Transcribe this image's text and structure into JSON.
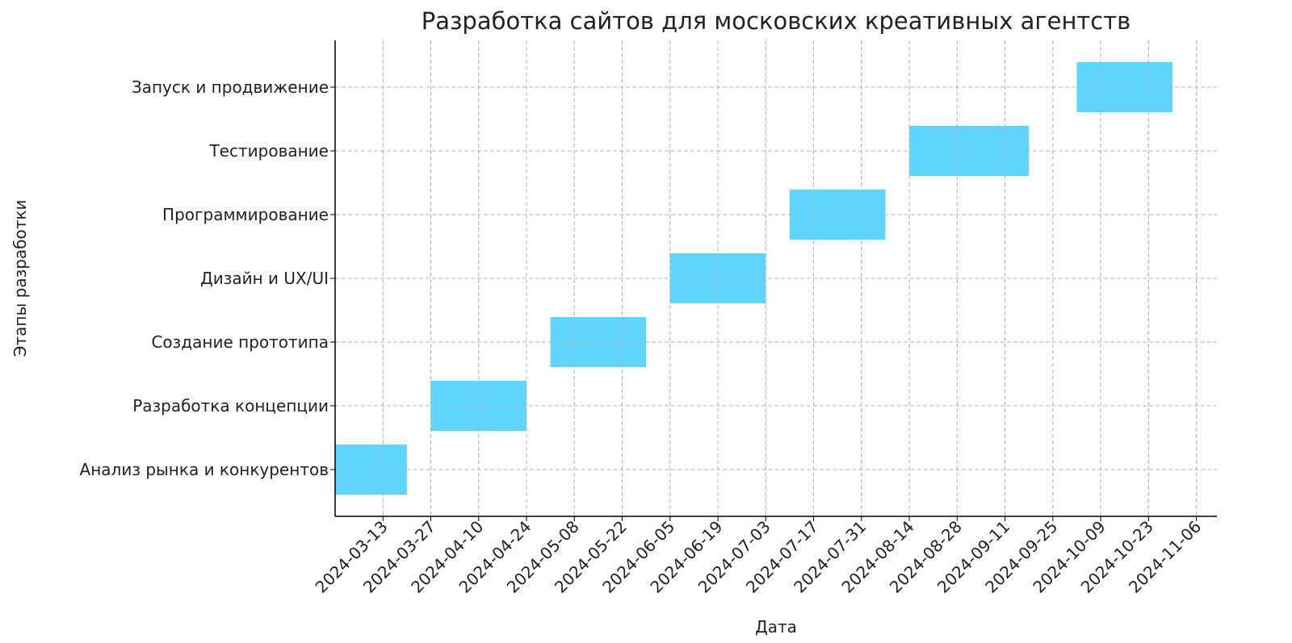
{
  "chart_data": {
    "type": "bar",
    "orientation": "horizontal-gantt",
    "title": "Разработка сайтов для московских креативных агентств",
    "xlabel": "Дата",
    "ylabel": "Этапы разработки",
    "xlim": [
      "2024-02-28",
      "2024-11-12"
    ],
    "grid": true,
    "bar_color": "#5fd5fd",
    "x_ticks": [
      "2024-03-13",
      "2024-03-27",
      "2024-04-10",
      "2024-04-24",
      "2024-05-08",
      "2024-05-22",
      "2024-06-05",
      "2024-06-19",
      "2024-07-03",
      "2024-07-17",
      "2024-07-31",
      "2024-08-14",
      "2024-08-28",
      "2024-09-11",
      "2024-09-25",
      "2024-10-09",
      "2024-10-23",
      "2024-11-06"
    ],
    "tasks": [
      {
        "name": "Анализ рынка и конкурентов",
        "start": "2024-02-28",
        "end": "2024-03-20"
      },
      {
        "name": "Разработка концепции",
        "start": "2024-03-27",
        "end": "2024-04-24"
      },
      {
        "name": "Создание прототипа",
        "start": "2024-05-01",
        "end": "2024-05-29"
      },
      {
        "name": "Дизайн и UX/UI",
        "start": "2024-06-05",
        "end": "2024-07-03"
      },
      {
        "name": "Программирование",
        "start": "2024-07-10",
        "end": "2024-08-07"
      },
      {
        "name": "Тестирование",
        "start": "2024-08-14",
        "end": "2024-09-18"
      },
      {
        "name": "Запуск и продвижение",
        "start": "2024-10-02",
        "end": "2024-10-30"
      }
    ]
  }
}
